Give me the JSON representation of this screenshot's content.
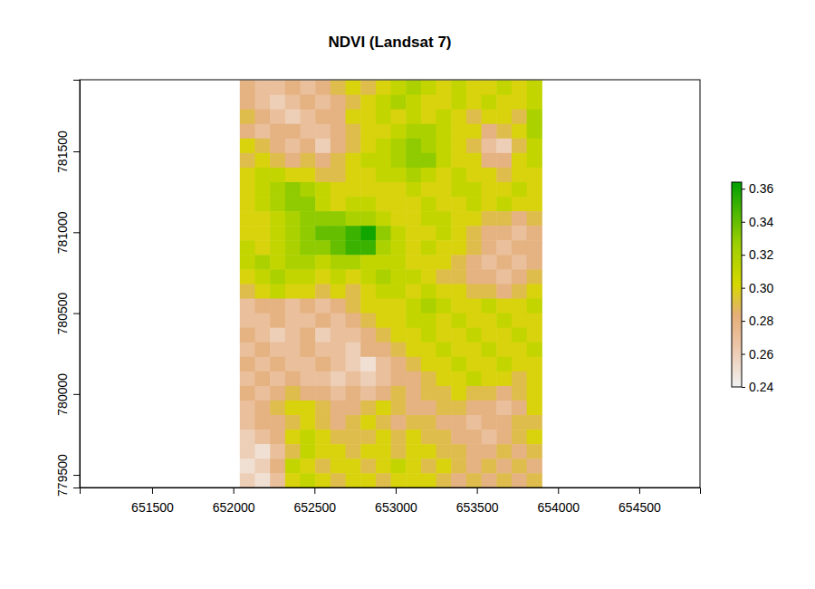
{
  "chart_data": {
    "type": "heatmap",
    "title": "NDVI (Landsat 7)",
    "xlim": [
      651054,
      654874
    ],
    "ylim": [
      779422,
      781943
    ],
    "xticks": [
      651500,
      652000,
      652500,
      653000,
      653500,
      654000,
      654500
    ],
    "yticks": [
      779500,
      780000,
      780500,
      781000,
      781500
    ],
    "x_edges": [
      652040,
      652133,
      652226,
      652319,
      652412,
      652505,
      652598,
      652691,
      652784,
      652877,
      652970,
      653063,
      653156,
      653249,
      653342,
      653435,
      653528,
      653621,
      653714,
      653807,
      653900
    ],
    "y_edges": [
      781940,
      781850,
      781760,
      781670,
      781580,
      781490,
      781400,
      781310,
      781220,
      781130,
      781040,
      780950,
      780860,
      780770,
      780680,
      780590,
      780500,
      780410,
      780320,
      780230,
      780140,
      780050,
      779960,
      779870,
      779780,
      779690,
      779600,
      779510,
      779420
    ],
    "values": [
      [
        0.28,
        0.27,
        0.27,
        0.28,
        0.27,
        0.28,
        0.29,
        0.3,
        0.29,
        0.3,
        0.31,
        0.32,
        0.31,
        0.3,
        0.31,
        0.3,
        0.3,
        0.31,
        0.3,
        0.31
      ],
      [
        0.28,
        0.27,
        0.26,
        0.27,
        0.28,
        0.27,
        0.28,
        0.29,
        0.3,
        0.31,
        0.32,
        0.31,
        0.3,
        0.3,
        0.31,
        0.3,
        0.31,
        0.3,
        0.3,
        0.31
      ],
      [
        0.29,
        0.28,
        0.27,
        0.26,
        0.27,
        0.28,
        0.28,
        0.3,
        0.3,
        0.31,
        0.3,
        0.31,
        0.3,
        0.31,
        0.3,
        0.29,
        0.3,
        0.3,
        0.29,
        0.32
      ],
      [
        0.28,
        0.27,
        0.28,
        0.28,
        0.27,
        0.27,
        0.28,
        0.29,
        0.3,
        0.3,
        0.31,
        0.32,
        0.32,
        0.31,
        0.3,
        0.3,
        0.28,
        0.29,
        0.3,
        0.32
      ],
      [
        0.3,
        0.29,
        0.28,
        0.27,
        0.28,
        0.26,
        0.28,
        0.29,
        0.3,
        0.31,
        0.32,
        0.33,
        0.32,
        0.31,
        0.3,
        0.29,
        0.27,
        0.26,
        0.29,
        0.31
      ],
      [
        0.29,
        0.3,
        0.29,
        0.28,
        0.29,
        0.28,
        0.29,
        0.3,
        0.31,
        0.31,
        0.32,
        0.33,
        0.33,
        0.31,
        0.3,
        0.3,
        0.28,
        0.28,
        0.3,
        0.31
      ],
      [
        0.3,
        0.31,
        0.31,
        0.3,
        0.3,
        0.29,
        0.29,
        0.3,
        0.3,
        0.31,
        0.31,
        0.32,
        0.31,
        0.3,
        0.31,
        0.3,
        0.3,
        0.29,
        0.3,
        0.3
      ],
      [
        0.3,
        0.31,
        0.32,
        0.33,
        0.32,
        0.31,
        0.3,
        0.3,
        0.3,
        0.3,
        0.3,
        0.31,
        0.3,
        0.3,
        0.31,
        0.31,
        0.3,
        0.3,
        0.31,
        0.3
      ],
      [
        0.3,
        0.31,
        0.32,
        0.33,
        0.33,
        0.31,
        0.3,
        0.31,
        0.31,
        0.3,
        0.3,
        0.3,
        0.31,
        0.3,
        0.3,
        0.31,
        0.3,
        0.31,
        0.3,
        0.3
      ],
      [
        0.3,
        0.3,
        0.31,
        0.32,
        0.33,
        0.33,
        0.33,
        0.32,
        0.32,
        0.31,
        0.3,
        0.3,
        0.31,
        0.31,
        0.3,
        0.3,
        0.29,
        0.29,
        0.28,
        0.29
      ],
      [
        0.3,
        0.3,
        0.31,
        0.32,
        0.33,
        0.34,
        0.34,
        0.35,
        0.36,
        0.33,
        0.31,
        0.3,
        0.3,
        0.31,
        0.3,
        0.29,
        0.28,
        0.28,
        0.27,
        0.28
      ],
      [
        0.31,
        0.3,
        0.31,
        0.32,
        0.33,
        0.33,
        0.34,
        0.35,
        0.35,
        0.32,
        0.31,
        0.3,
        0.31,
        0.3,
        0.3,
        0.29,
        0.28,
        0.27,
        0.28,
        0.28
      ],
      [
        0.31,
        0.32,
        0.31,
        0.32,
        0.32,
        0.31,
        0.32,
        0.32,
        0.31,
        0.31,
        0.31,
        0.3,
        0.3,
        0.3,
        0.29,
        0.28,
        0.27,
        0.28,
        0.27,
        0.28
      ],
      [
        0.3,
        0.31,
        0.32,
        0.31,
        0.31,
        0.3,
        0.31,
        0.3,
        0.31,
        0.32,
        0.31,
        0.31,
        0.3,
        0.29,
        0.29,
        0.28,
        0.28,
        0.27,
        0.28,
        0.29
      ],
      [
        0.29,
        0.3,
        0.31,
        0.3,
        0.3,
        0.29,
        0.3,
        0.29,
        0.3,
        0.31,
        0.31,
        0.3,
        0.31,
        0.3,
        0.3,
        0.29,
        0.29,
        0.28,
        0.29,
        0.3
      ],
      [
        0.27,
        0.28,
        0.28,
        0.27,
        0.28,
        0.27,
        0.28,
        0.29,
        0.3,
        0.3,
        0.3,
        0.31,
        0.32,
        0.31,
        0.3,
        0.3,
        0.31,
        0.3,
        0.3,
        0.31
      ],
      [
        0.27,
        0.27,
        0.28,
        0.27,
        0.27,
        0.28,
        0.27,
        0.28,
        0.29,
        0.3,
        0.3,
        0.31,
        0.31,
        0.3,
        0.31,
        0.3,
        0.3,
        0.31,
        0.3,
        0.3
      ],
      [
        0.28,
        0.27,
        0.26,
        0.27,
        0.28,
        0.26,
        0.27,
        0.27,
        0.28,
        0.29,
        0.3,
        0.3,
        0.31,
        0.3,
        0.3,
        0.31,
        0.3,
        0.3,
        0.31,
        0.3
      ],
      [
        0.27,
        0.28,
        0.27,
        0.27,
        0.28,
        0.27,
        0.27,
        0.26,
        0.28,
        0.28,
        0.29,
        0.3,
        0.3,
        0.31,
        0.3,
        0.3,
        0.31,
        0.3,
        0.3,
        0.31
      ],
      [
        0.28,
        0.27,
        0.28,
        0.27,
        0.27,
        0.28,
        0.27,
        0.26,
        0.25,
        0.27,
        0.28,
        0.29,
        0.3,
        0.3,
        0.31,
        0.3,
        0.3,
        0.31,
        0.3,
        0.3
      ],
      [
        0.27,
        0.28,
        0.27,
        0.28,
        0.27,
        0.27,
        0.26,
        0.27,
        0.26,
        0.27,
        0.28,
        0.28,
        0.29,
        0.3,
        0.3,
        0.31,
        0.3,
        0.3,
        0.29,
        0.3
      ],
      [
        0.28,
        0.27,
        0.28,
        0.29,
        0.28,
        0.28,
        0.27,
        0.28,
        0.27,
        0.28,
        0.29,
        0.28,
        0.29,
        0.29,
        0.3,
        0.29,
        0.29,
        0.28,
        0.29,
        0.3
      ],
      [
        0.27,
        0.28,
        0.29,
        0.3,
        0.3,
        0.29,
        0.28,
        0.28,
        0.29,
        0.3,
        0.29,
        0.28,
        0.28,
        0.29,
        0.29,
        0.28,
        0.28,
        0.27,
        0.28,
        0.3
      ],
      [
        0.27,
        0.28,
        0.28,
        0.29,
        0.3,
        0.29,
        0.28,
        0.29,
        0.3,
        0.29,
        0.28,
        0.29,
        0.29,
        0.28,
        0.28,
        0.27,
        0.28,
        0.28,
        0.29,
        0.29
      ],
      [
        0.26,
        0.27,
        0.28,
        0.3,
        0.31,
        0.3,
        0.29,
        0.29,
        0.29,
        0.3,
        0.29,
        0.3,
        0.29,
        0.29,
        0.28,
        0.28,
        0.27,
        0.28,
        0.29,
        0.3
      ],
      [
        0.26,
        0.25,
        0.27,
        0.29,
        0.31,
        0.3,
        0.3,
        0.29,
        0.3,
        0.3,
        0.29,
        0.3,
        0.3,
        0.29,
        0.29,
        0.28,
        0.28,
        0.29,
        0.28,
        0.29
      ],
      [
        0.25,
        0.26,
        0.28,
        0.31,
        0.3,
        0.29,
        0.3,
        0.3,
        0.29,
        0.3,
        0.31,
        0.3,
        0.29,
        0.3,
        0.29,
        0.28,
        0.29,
        0.28,
        0.29,
        0.28
      ],
      [
        0.26,
        0.25,
        0.27,
        0.3,
        0.31,
        0.3,
        0.29,
        0.3,
        0.3,
        0.29,
        0.3,
        0.3,
        0.3,
        0.29,
        0.28,
        0.29,
        0.28,
        0.29,
        0.28,
        0.29
      ]
    ],
    "colorbar": {
      "range": [
        0.24,
        0.364
      ],
      "ticks": [
        0.24,
        0.26,
        0.28,
        0.3,
        0.32,
        0.34,
        0.36
      ]
    }
  }
}
